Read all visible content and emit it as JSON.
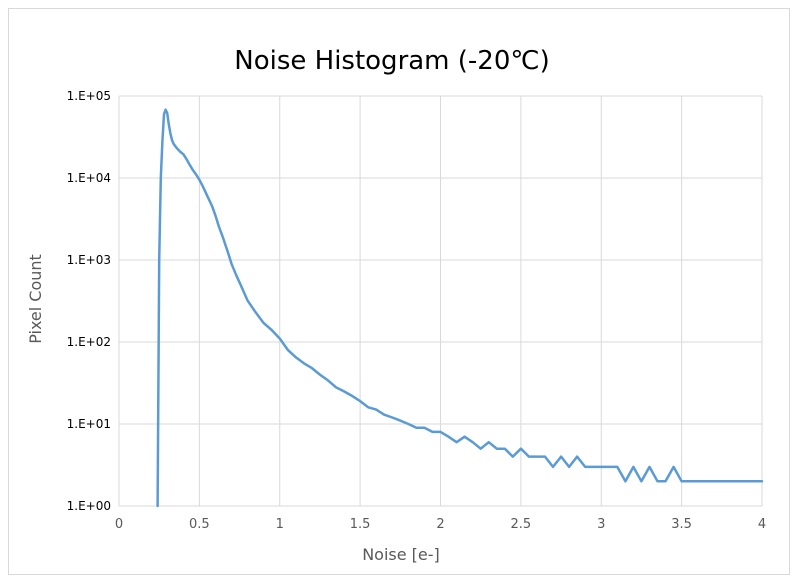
{
  "chart_data": {
    "type": "line",
    "title": "Noise Histogram  (-20℃)",
    "xlabel": "Noise [e-]",
    "ylabel": "Pixel Count",
    "xlim": [
      0,
      4
    ],
    "ylim": [
      1,
      100000
    ],
    "yscale": "log",
    "grid": true,
    "legend": "none",
    "x_ticks": [
      0,
      0.5,
      1,
      1.5,
      2,
      2.5,
      3,
      3.5,
      4
    ],
    "x_tick_labels": [
      "0",
      "0.5",
      "1",
      "1.5",
      "2",
      "2.5",
      "3",
      "3.5",
      "4"
    ],
    "y_ticks": [
      1,
      10,
      100,
      1000,
      10000,
      100000
    ],
    "y_tick_labels": [
      "1.E+00",
      "1.E+01",
      "1.E+02",
      "1.E+03",
      "1.E+04",
      "1.E+05"
    ],
    "series": [
      {
        "color": "#5b9bd5",
        "x": [
          0.24,
          0.25,
          0.26,
          0.27,
          0.28,
          0.29,
          0.3,
          0.31,
          0.32,
          0.33,
          0.34,
          0.36,
          0.38,
          0.4,
          0.42,
          0.44,
          0.46,
          0.48,
          0.5,
          0.52,
          0.55,
          0.58,
          0.6,
          0.62,
          0.65,
          0.68,
          0.7,
          0.73,
          0.76,
          0.8,
          0.85,
          0.9,
          0.95,
          1.0,
          1.05,
          1.1,
          1.15,
          1.2,
          1.25,
          1.3,
          1.35,
          1.4,
          1.45,
          1.5,
          1.55,
          1.6,
          1.65,
          1.7,
          1.75,
          1.8,
          1.85,
          1.9,
          1.95,
          2.0,
          2.05,
          2.1,
          2.15,
          2.2,
          2.25,
          2.3,
          2.35,
          2.4,
          2.45,
          2.5,
          2.55,
          2.6,
          2.65,
          2.7,
          2.75,
          2.8,
          2.85,
          2.9,
          2.95,
          3.0,
          3.05,
          3.1,
          3.15,
          3.2,
          3.25,
          3.3,
          3.35,
          3.4,
          3.45,
          3.5,
          3.55,
          3.6,
          3.65,
          3.7,
          3.75,
          3.8,
          3.85,
          3.9,
          3.95,
          4.0
        ],
        "y": [
          1,
          1000,
          10000,
          28000,
          60000,
          68000,
          62000,
          45000,
          35000,
          29000,
          26000,
          23000,
          21000,
          19500,
          17000,
          14500,
          12500,
          11000,
          9500,
          8000,
          6000,
          4500,
          3500,
          2600,
          1800,
          1200,
          900,
          650,
          480,
          320,
          230,
          170,
          140,
          110,
          80,
          65,
          55,
          48,
          40,
          34,
          28,
          25,
          22,
          19,
          16,
          15,
          13,
          12,
          11,
          10,
          9,
          9,
          8,
          8,
          7,
          6,
          7,
          6,
          5,
          6,
          5,
          5,
          4,
          5,
          4,
          4,
          4,
          3,
          4,
          3,
          4,
          3,
          3,
          3,
          3,
          3,
          2,
          3,
          2,
          3,
          2,
          2,
          3,
          2,
          2,
          2,
          2,
          2,
          2,
          2,
          2,
          2,
          2,
          2
        ]
      }
    ]
  }
}
